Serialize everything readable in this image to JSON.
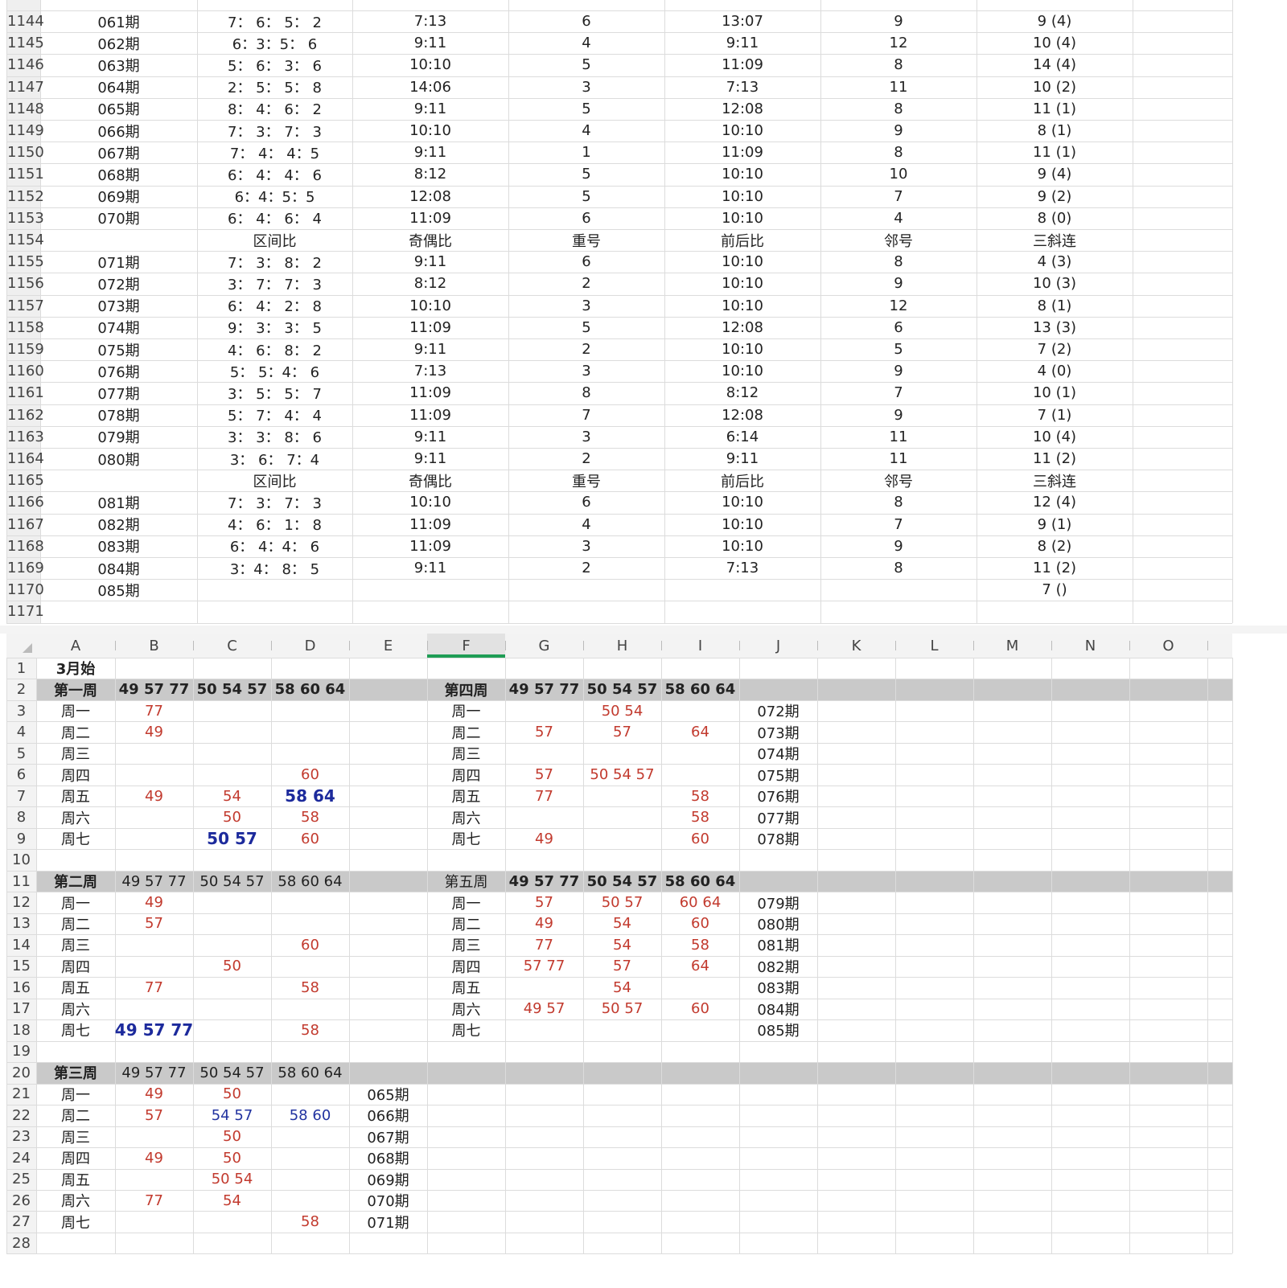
{
  "top_sheet": {
    "rows": [
      {
        "row": "1144",
        "cells": {
          "A": "061期",
          "B": "7： 6： 5： 2",
          "C": "7:13",
          "D": "6",
          "E": "13:07",
          "F": "9",
          "G": "9 (4)"
        }
      },
      {
        "row": "1145",
        "cells": {
          "A": "062期",
          "B": "6：3：5： 6",
          "C": "9:11",
          "D": "4",
          "E": "9:11",
          "F": "12",
          "G": "10 (4)"
        }
      },
      {
        "row": "1146",
        "cells": {
          "A": "063期",
          "B": "5： 6： 3： 6",
          "C": "10:10",
          "D": "5",
          "E": "11:09",
          "F": "8",
          "G": "14 (4)"
        }
      },
      {
        "row": "1147",
        "cells": {
          "A": "064期",
          "B": "2： 5： 5： 8",
          "C": "14:06",
          "D": "3",
          "E": "7:13",
          "F": "11",
          "G": "10 (2)"
        }
      },
      {
        "row": "1148",
        "cells": {
          "A": "065期",
          "B": "8： 4： 6： 2",
          "C": "9:11",
          "D": "5",
          "E": "12:08",
          "F": "8",
          "G": "11 (1)"
        }
      },
      {
        "row": "1149",
        "cells": {
          "A": "066期",
          "B": "7： 3： 7： 3",
          "C": "10:10",
          "D": "4",
          "E": "10:10",
          "F": "9",
          "G": "8 (1)"
        }
      },
      {
        "row": "1150",
        "cells": {
          "A": "067期",
          "B": "7： 4： 4：5",
          "C": "9:11",
          "D": "1",
          "E": "11:09",
          "F": "8",
          "G": "11 (1)"
        }
      },
      {
        "row": "1151",
        "cells": {
          "A": "068期",
          "B": "6： 4： 4： 6",
          "C": "8:12",
          "D": "5",
          "E": "10:10",
          "F": "10",
          "G": "9 (4)"
        }
      },
      {
        "row": "1152",
        "cells": {
          "A": "069期",
          "B": "6：4：5：5",
          "C": "12:08",
          "D": "5",
          "E": "10:10",
          "F": "7",
          "G": "9 (2)"
        }
      },
      {
        "row": "1153",
        "cells": {
          "A": "070期",
          "B": "6： 4： 6： 4",
          "C": "11:09",
          "D": "6",
          "E": "10:10",
          "F": "4",
          "G": "8 (0)"
        }
      },
      {
        "row": "1154",
        "cells": {
          "B": "区间比",
          "C": "奇偶比",
          "D": "重号",
          "E": "前后比",
          "F": "邻号",
          "G": "三斜连"
        }
      },
      {
        "row": "1155",
        "cells": {
          "A": "071期",
          "B": "7： 3： 8： 2",
          "C": "9:11",
          "D": "6",
          "E": "10:10",
          "F": "8",
          "G": "4 (3)"
        }
      },
      {
        "row": "1156",
        "cells": {
          "A": "072期",
          "B": "3： 7： 7： 3",
          "C": "8:12",
          "D": "2",
          "E": "10:10",
          "F": "9",
          "G": "10 (3)"
        }
      },
      {
        "row": "1157",
        "cells": {
          "A": "073期",
          "B": "6： 4： 2： 8",
          "C": "10:10",
          "D": "3",
          "E": "10:10",
          "F": "12",
          "G": "8 (1)"
        }
      },
      {
        "row": "1158",
        "cells": {
          "A": "074期",
          "B": "9： 3： 3： 5",
          "C": "11:09",
          "D": "5",
          "E": "12:08",
          "F": "6",
          "G": "13 (3)"
        }
      },
      {
        "row": "1159",
        "cells": {
          "A": "075期",
          "B": "4： 6： 8： 2",
          "C": "9:11",
          "D": "2",
          "E": "10:10",
          "F": "5",
          "G": "7 (2)"
        }
      },
      {
        "row": "1160",
        "cells": {
          "A": "076期",
          "B": "5： 5：4： 6",
          "C": "7:13",
          "D": "3",
          "E": "10:10",
          "F": "9",
          "G": "4 (0)"
        }
      },
      {
        "row": "1161",
        "cells": {
          "A": "077期",
          "B": "3： 5： 5： 7",
          "C": "11:09",
          "D": "8",
          "E": "8:12",
          "F": "7",
          "G": "10 (1)"
        }
      },
      {
        "row": "1162",
        "cells": {
          "A": "078期",
          "B": "5： 7： 4： 4",
          "C": "11:09",
          "D": "7",
          "E": "12:08",
          "F": "9",
          "G": "7 (1)"
        }
      },
      {
        "row": "1163",
        "cells": {
          "A": "079期",
          "B": "3： 3： 8： 6",
          "C": "9:11",
          "D": "3",
          "E": "6:14",
          "F": "11",
          "G": "10 (4)"
        }
      },
      {
        "row": "1164",
        "cells": {
          "A": "080期",
          "B": "3： 6： 7：4",
          "C": "9:11",
          "D": "2",
          "E": "9:11",
          "F": "11",
          "G": "11 (2)"
        }
      },
      {
        "row": "1165",
        "cells": {
          "B": "区间比",
          "C": "奇偶比",
          "D": "重号",
          "E": "前后比",
          "F": "邻号",
          "G": "三斜连"
        }
      },
      {
        "row": "1166",
        "cells": {
          "A": "081期",
          "B": "7： 3： 7： 3",
          "C": "10:10",
          "D": "6",
          "E": "10:10",
          "F": "8",
          "G": "12 (4)"
        }
      },
      {
        "row": "1167",
        "cells": {
          "A": "082期",
          "B": "4： 6： 1： 8",
          "C": "11:09",
          "D": "4",
          "E": "10:10",
          "F": "7",
          "G": "9 (1)"
        }
      },
      {
        "row": "1168",
        "cells": {
          "A": "083期",
          "B": "6： 4：4： 6",
          "C": "11:09",
          "D": "3",
          "E": "10:10",
          "F": "9",
          "G": "8 (2)"
        }
      },
      {
        "row": "1169",
        "cells": {
          "A": "084期",
          "B": "3：4： 8： 5",
          "C": "9:11",
          "D": "2",
          "E": "7:13",
          "F": "8",
          "G": "11 (2)"
        }
      },
      {
        "row": "1170",
        "cells": {
          "A": "085期",
          "G": "7 ()"
        }
      },
      {
        "row": "1171",
        "cells": {}
      }
    ]
  },
  "bottom_sheet": {
    "columns": [
      "A",
      "B",
      "C",
      "D",
      "E",
      "F",
      "G",
      "H",
      "I",
      "J",
      "K",
      "L",
      "M",
      "N",
      "O"
    ],
    "rows": [
      {
        "row": "1",
        "cells": {
          "A": "3月始"
        },
        "style": {
          "A": "bold"
        }
      },
      {
        "row": "2",
        "band": true,
        "cells": {
          "A": "第一周",
          "B": "49 57 77",
          "C": "50 54 57",
          "D": "58 60 64",
          "F": "第四周",
          "G": "49 57 77",
          "H": "50 54 57",
          "I": "58 60 64"
        },
        "style": {
          "A": "bold",
          "B": "bold",
          "C": "bold",
          "D": "bold",
          "F": "bold",
          "G": "bold",
          "H": "bold",
          "I": "bold"
        }
      },
      {
        "row": "3",
        "cells": {
          "A": "周一",
          "B": "77",
          "F": "周一",
          "H": "50 54",
          "J": "072期"
        },
        "style": {
          "B": "red",
          "H": "red"
        }
      },
      {
        "row": "4",
        "cells": {
          "A": "周二",
          "B": "49",
          "F": "周二",
          "G": "57",
          "H": "57",
          "I": "64",
          "J": "073期"
        },
        "style": {
          "B": "red",
          "G": "red",
          "H": "red",
          "I": "red"
        }
      },
      {
        "row": "5",
        "cells": {
          "A": "周三",
          "F": "周三",
          "J": "074期"
        }
      },
      {
        "row": "6",
        "cells": {
          "A": "周四",
          "D": "60",
          "F": "周四",
          "G": "57",
          "H": "50 54 57",
          "J": "075期"
        },
        "style": {
          "D": "red",
          "G": "red",
          "H": "red"
        }
      },
      {
        "row": "7",
        "cells": {
          "A": "周五",
          "B": "49",
          "C": "54",
          "D": "58 64",
          "F": "周五",
          "G": "77",
          "I": "58",
          "J": "076期"
        },
        "style": {
          "B": "red",
          "C": "red",
          "D": "blue-bold",
          "G": "red",
          "I": "red"
        }
      },
      {
        "row": "8",
        "cells": {
          "A": "周六",
          "C": "50",
          "D": "58",
          "F": "周六",
          "I": "58",
          "J": "077期"
        },
        "style": {
          "C": "red",
          "D": "red",
          "I": "red"
        }
      },
      {
        "row": "9",
        "cells": {
          "A": "周七",
          "C": "50 57",
          "D": "60",
          "F": "周七",
          "G": "49",
          "I": "60",
          "J": "078期"
        },
        "style": {
          "C": "blue-bold",
          "D": "red",
          "G": "red",
          "I": "red"
        }
      },
      {
        "row": "10",
        "cells": {}
      },
      {
        "row": "11",
        "band": true,
        "cells": {
          "A": "第二周",
          "B": "49 57 77",
          "C": "50 54 57",
          "D": "58 60 64",
          "F": "第五周",
          "G": "49 57 77",
          "H": "50 54 57",
          "I": "58 60 64"
        },
        "style": {
          "A": "bold",
          "G": "bold",
          "H": "bold",
          "I": "bold"
        }
      },
      {
        "row": "12",
        "cells": {
          "A": "周一",
          "B": "49",
          "F": "周一",
          "G": "57",
          "H": "50 57",
          "I": "60 64",
          "J": "079期"
        },
        "style": {
          "B": "red",
          "G": "red",
          "H": "red",
          "I": "red"
        }
      },
      {
        "row": "13",
        "cells": {
          "A": "周二",
          "B": "57",
          "F": "周二",
          "G": "49",
          "H": "54",
          "I": "60",
          "J": "080期"
        },
        "style": {
          "B": "red",
          "G": "red",
          "H": "red",
          "I": "red"
        }
      },
      {
        "row": "14",
        "cells": {
          "A": "周三",
          "D": "60",
          "F": "周三",
          "G": "77",
          "H": "54",
          "I": "58",
          "J": "081期"
        },
        "style": {
          "D": "red",
          "G": "red",
          "H": "red",
          "I": "red"
        }
      },
      {
        "row": "15",
        "cells": {
          "A": "周四",
          "C": "50",
          "F": "周四",
          "G": "57 77",
          "H": "57",
          "I": "64",
          "J": "082期"
        },
        "style": {
          "C": "red",
          "G": "red",
          "H": "red",
          "I": "red"
        }
      },
      {
        "row": "16",
        "cells": {
          "A": "周五",
          "B": "77",
          "D": "58",
          "F": "周五",
          "H": "54",
          "J": "083期"
        },
        "style": {
          "B": "red",
          "D": "red",
          "H": "red"
        }
      },
      {
        "row": "17",
        "cells": {
          "A": "周六",
          "F": "周六",
          "G": "49 57",
          "H": "50 57",
          "I": "60",
          "J": "084期"
        },
        "style": {
          "G": "red",
          "H": "red",
          "I": "red"
        }
      },
      {
        "row": "18",
        "cells": {
          "A": "周七",
          "B": "49 57 77",
          "D": "58",
          "F": "周七",
          "J": "085期"
        },
        "style": {
          "B": "blue-bold",
          "D": "red"
        }
      },
      {
        "row": "19",
        "cells": {}
      },
      {
        "row": "20",
        "band": true,
        "cells": {
          "A": "第三周",
          "B": "49 57 77",
          "C": "50 54 57",
          "D": "58 60 64"
        },
        "style": {
          "A": "bold"
        }
      },
      {
        "row": "21",
        "cells": {
          "A": "周一",
          "B": "49",
          "C": "50",
          "E": "065期"
        },
        "style": {
          "B": "red",
          "C": "red"
        }
      },
      {
        "row": "22",
        "cells": {
          "A": "周二",
          "B": "57",
          "C": "54 57",
          "D": "58 60",
          "E": "066期"
        },
        "style": {
          "B": "red",
          "C": "blue",
          "D": "blue"
        }
      },
      {
        "row": "23",
        "cells": {
          "A": "周三",
          "C": "50",
          "E": "067期"
        },
        "style": {
          "C": "red"
        }
      },
      {
        "row": "24",
        "cells": {
          "A": "周四",
          "B": "49",
          "C": "50",
          "E": "068期"
        },
        "style": {
          "B": "red",
          "C": "red"
        }
      },
      {
        "row": "25",
        "cells": {
          "A": "周五",
          "C": "50 54",
          "E": "069期"
        },
        "style": {
          "C": "red"
        }
      },
      {
        "row": "26",
        "cells": {
          "A": "周六",
          "B": "77",
          "C": "54",
          "E": "070期"
        },
        "style": {
          "B": "red",
          "C": "red"
        }
      },
      {
        "row": "27",
        "cells": {
          "A": "周七",
          "D": "58",
          "E": "071期"
        },
        "style": {
          "D": "red"
        }
      },
      {
        "row": "28",
        "cells": {}
      }
    ]
  }
}
